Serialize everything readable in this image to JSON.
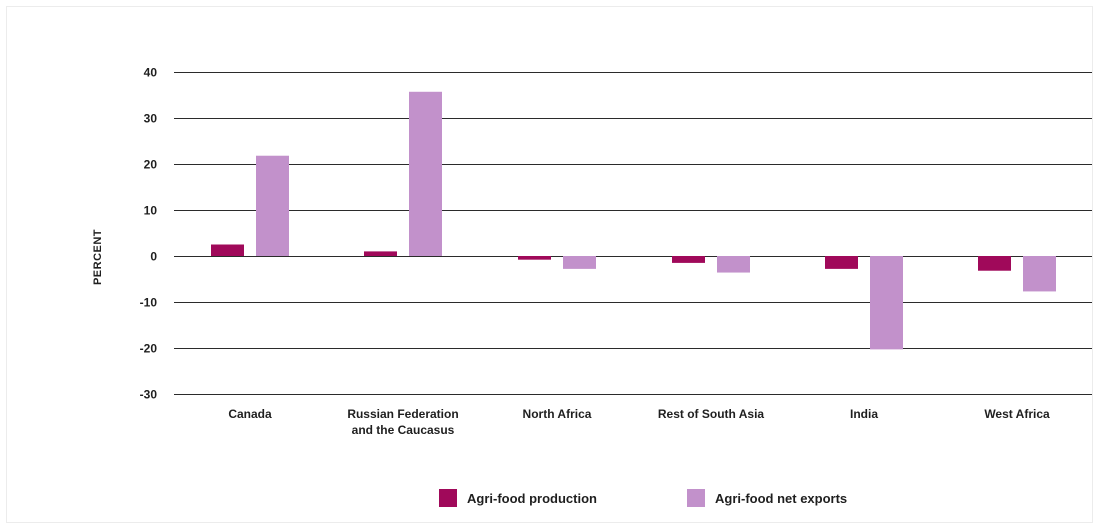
{
  "chart_data": {
    "type": "bar",
    "title": "",
    "xlabel": "",
    "ylabel": "PERCENT",
    "ylim": [
      -30,
      40
    ],
    "yticks": [
      40,
      30,
      20,
      10,
      0,
      -10,
      -20,
      -30
    ],
    "grid": true,
    "legend_position": "bottom",
    "categories": [
      [
        "Canada"
      ],
      [
        "Russian Federation",
        "and the Caucasus"
      ],
      [
        "North Africa"
      ],
      [
        "Rest of South Asia"
      ],
      [
        "India"
      ],
      [
        "West Africa"
      ]
    ],
    "series": [
      {
        "name": "Agri-food production",
        "color": "#a0095a",
        "values": [
          2.5,
          1.0,
          -0.8,
          -1.5,
          -2.8,
          -3.2
        ]
      },
      {
        "name": "Agri-food net exports",
        "color": "#c291cb",
        "values": [
          21.8,
          35.7,
          -2.8,
          -3.6,
          -20.3,
          -7.7
        ]
      }
    ]
  }
}
